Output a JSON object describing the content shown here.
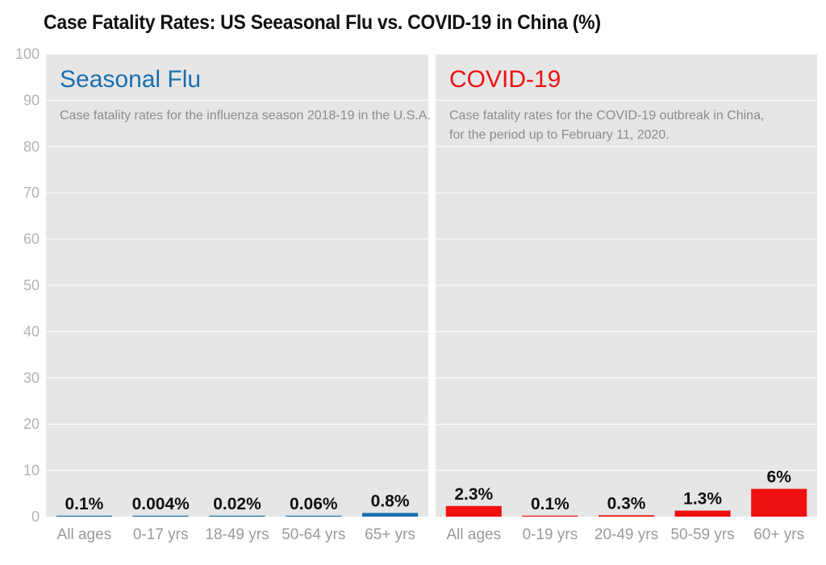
{
  "title": "Case Fatality Rates: US Seeasonal Flu vs. COVID-19 in China  (%)",
  "colors": {
    "flu": "#1a6faf",
    "covid": "#ee1111"
  },
  "chart_data": [
    {
      "type": "bar",
      "title": "Seasonal Flu",
      "subtitle_lines": [
        "Case fatality rates for the influenza season 2018-19 in the U.S.A."
      ],
      "categories": [
        "All ages",
        "0-17 yrs",
        "18-49 yrs",
        "50-64 yrs",
        "65+ yrs"
      ],
      "values": [
        0.1,
        0.004,
        0.02,
        0.06,
        0.8
      ],
      "value_labels": [
        "0.1%",
        "0.004%",
        "0.02%",
        "0.06%",
        "0.8%"
      ],
      "ylim": [
        0,
        100
      ],
      "yticks": [
        0,
        10,
        20,
        30,
        40,
        50,
        60,
        70,
        80,
        90,
        100
      ],
      "grid": true,
      "color_key": "flu"
    },
    {
      "type": "bar",
      "title": "COVID-19",
      "subtitle_lines": [
        "Case fatality rates for the COVID-19 outbreak in China,",
        "for the period up to February 11, 2020."
      ],
      "categories": [
        "All ages",
        "0-19 yrs",
        "20-49 yrs",
        "50-59 yrs",
        "60+ yrs"
      ],
      "values": [
        2.3,
        0.1,
        0.3,
        1.3,
        6
      ],
      "value_labels": [
        "2.3%",
        "0.1%",
        "0.3%",
        "1.3%",
        "6%"
      ],
      "ylim": [
        0,
        100
      ],
      "grid": true,
      "color_key": "covid"
    }
  ]
}
